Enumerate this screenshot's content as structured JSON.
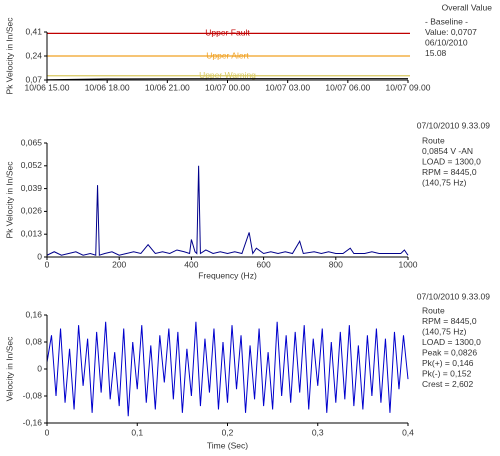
{
  "chart_data": [
    {
      "type": "line",
      "title": "Overall Value",
      "y_label": "Pk Velocity in In/Sec",
      "annotations": [
        "- Baseline -",
        "Value: 0,0707",
        "06/10/2010",
        "15.08"
      ],
      "categories": [
        "10/06 15.00",
        "10/06 18.00",
        "10/06 21.00",
        "10/07 00.00",
        "10/07 03.00",
        "10/07 06.00",
        "10/07 09.00"
      ],
      "series": [
        {
          "color": "#000000",
          "values": [
            0.072,
            0.078,
            0.079,
            0.08,
            0.08,
            0.08,
            0.08
          ]
        }
      ],
      "thresholds": [
        {
          "name": "Upper Fault",
          "color": "#c00000",
          "value": 0.4
        },
        {
          "name": "Upper Alert",
          "color": "#f0a020",
          "value": 0.24
        },
        {
          "name": "Upper Warning",
          "color": "#d8c860",
          "value": 0.1
        }
      ],
      "ylim": [
        0.07,
        0.41
      ],
      "yticks": [
        {
          "value": 0.41,
          "label": "0,41"
        },
        {
          "value": 0.24,
          "label": "0,24"
        },
        {
          "value": 0.07,
          "label": "0,07"
        }
      ]
    },
    {
      "type": "line",
      "subtitle": "07/10/2010 9.33.09",
      "y_label": "Pk Velocity in In/Sec",
      "x_label": "Frequency (Hz)",
      "annotations": [
        "Route",
        "0,0854 V -AN",
        "LOAD = 1300,0",
        "RPM = 8445,0",
        "(140,75 Hz)"
      ],
      "x": [
        0,
        20,
        40,
        60,
        80,
        100,
        120,
        135,
        140,
        145,
        160,
        180,
        200,
        220,
        240,
        260,
        280,
        300,
        320,
        340,
        360,
        380,
        395,
        400,
        410,
        415,
        420,
        425,
        440,
        460,
        480,
        500,
        520,
        540,
        560,
        570,
        580,
        600,
        620,
        640,
        660,
        680,
        700,
        710,
        740,
        760,
        780,
        800,
        820,
        840,
        850,
        880,
        900,
        920,
        940,
        960,
        980,
        990,
        1000
      ],
      "series": [
        {
          "color": "#00008b",
          "values": [
            0.001,
            0.003,
            0.001,
            0.002,
            0.003,
            0.001,
            0.002,
            0.001,
            0.041,
            0.001,
            0.002,
            0.003,
            0.001,
            0.002,
            0.003,
            0.002,
            0.007,
            0.002,
            0.003,
            0.002,
            0.004,
            0.003,
            0.002,
            0.01,
            0.003,
            0.002,
            0.052,
            0.002,
            0.004,
            0.002,
            0.003,
            0.002,
            0.003,
            0.002,
            0.014,
            0.002,
            0.005,
            0.002,
            0.003,
            0.002,
            0.003,
            0.002,
            0.009,
            0.002,
            0.003,
            0.002,
            0.003,
            0.002,
            0.002,
            0.005,
            0.002,
            0.002,
            0.003,
            0.002,
            0.002,
            0.002,
            0.002,
            0.004,
            0.001
          ]
        }
      ],
      "xlim": [
        0,
        1000
      ],
      "xticks": [
        0,
        200,
        400,
        600,
        800,
        1000
      ],
      "ylim": [
        0,
        0.065
      ],
      "yticks": [
        {
          "value": 0.065,
          "label": "0,065"
        },
        {
          "value": 0.052,
          "label": "0,052"
        },
        {
          "value": 0.039,
          "label": "0,039"
        },
        {
          "value": 0.026,
          "label": "0,026"
        },
        {
          "value": 0.013,
          "label": "0,013"
        },
        0
      ]
    },
    {
      "type": "line",
      "subtitle": "07/10/2010 9.33.09",
      "y_label": "Velocity in In/Sec",
      "x_label": "Time (Sec)",
      "annotations": [
        "Route",
        "RPM = 8445,0",
        "(140,75 Hz)",
        "LOAD = 1300,0",
        "Peak = 0,0826",
        "Pk(+) = 0,146",
        "Pk(-) = 0,152",
        "Crest = 2,602"
      ],
      "x": [
        0,
        0.005,
        0.01,
        0.015,
        0.02,
        0.025,
        0.03,
        0.035,
        0.04,
        0.045,
        0.05,
        0.055,
        0.06,
        0.065,
        0.07,
        0.075,
        0.08,
        0.085,
        0.09,
        0.095,
        0.1,
        0.105,
        0.11,
        0.115,
        0.12,
        0.125,
        0.13,
        0.135,
        0.14,
        0.145,
        0.15,
        0.155,
        0.16,
        0.165,
        0.17,
        0.175,
        0.18,
        0.185,
        0.19,
        0.195,
        0.2,
        0.205,
        0.21,
        0.215,
        0.22,
        0.225,
        0.23,
        0.235,
        0.24,
        0.245,
        0.25,
        0.255,
        0.26,
        0.265,
        0.27,
        0.275,
        0.28,
        0.285,
        0.29,
        0.295,
        0.3,
        0.305,
        0.31,
        0.315,
        0.32,
        0.325,
        0.33,
        0.335,
        0.34,
        0.345,
        0.35,
        0.355,
        0.36,
        0.365,
        0.37,
        0.375,
        0.38,
        0.385,
        0.39,
        0.395,
        0.4
      ],
      "series": [
        {
          "color": "#0000cd",
          "values": [
            0.02,
            0.1,
            -0.08,
            0.12,
            -0.1,
            0.06,
            -0.12,
            0.13,
            -0.05,
            0.09,
            -0.13,
            0.11,
            -0.07,
            0.14,
            -0.09,
            0.05,
            -0.11,
            0.12,
            -0.14,
            0.08,
            -0.06,
            0.13,
            -0.1,
            0.07,
            -0.12,
            0.1,
            -0.04,
            0.12,
            -0.09,
            0.11,
            -0.13,
            0.06,
            -0.08,
            0.14,
            -0.11,
            0.09,
            -0.07,
            0.12,
            -0.12,
            0.08,
            -0.1,
            0.13,
            -0.06,
            0.1,
            -0.13,
            0.07,
            -0.09,
            0.12,
            -0.11,
            0.05,
            -0.12,
            0.14,
            -0.08,
            0.1,
            -0.1,
            0.11,
            -0.07,
            0.13,
            -0.12,
            0.09,
            -0.05,
            0.12,
            -0.13,
            0.08,
            -0.1,
            0.11,
            -0.09,
            0.13,
            -0.11,
            0.07,
            -0.12,
            0.1,
            -0.08,
            0.12,
            -0.1,
            0.09,
            -0.13,
            0.11,
            -0.06,
            0.1,
            -0.03
          ]
        }
      ],
      "xlim": [
        0,
        0.4
      ],
      "xticks": [
        0,
        {
          "value": 0.1,
          "label": "0,1"
        },
        {
          "value": 0.2,
          "label": "0,2"
        },
        {
          "value": 0.3,
          "label": "0,3"
        },
        {
          "value": 0.4,
          "label": "0,4"
        }
      ],
      "ylim": [
        -0.16,
        0.16
      ],
      "yticks": [
        {
          "value": 0.16,
          "label": "0,16"
        },
        {
          "value": 0.08,
          "label": "0,08"
        },
        0,
        {
          "value": -0.08,
          "label": "-0,08"
        },
        {
          "value": -0.16,
          "label": "-0,16"
        }
      ]
    }
  ]
}
